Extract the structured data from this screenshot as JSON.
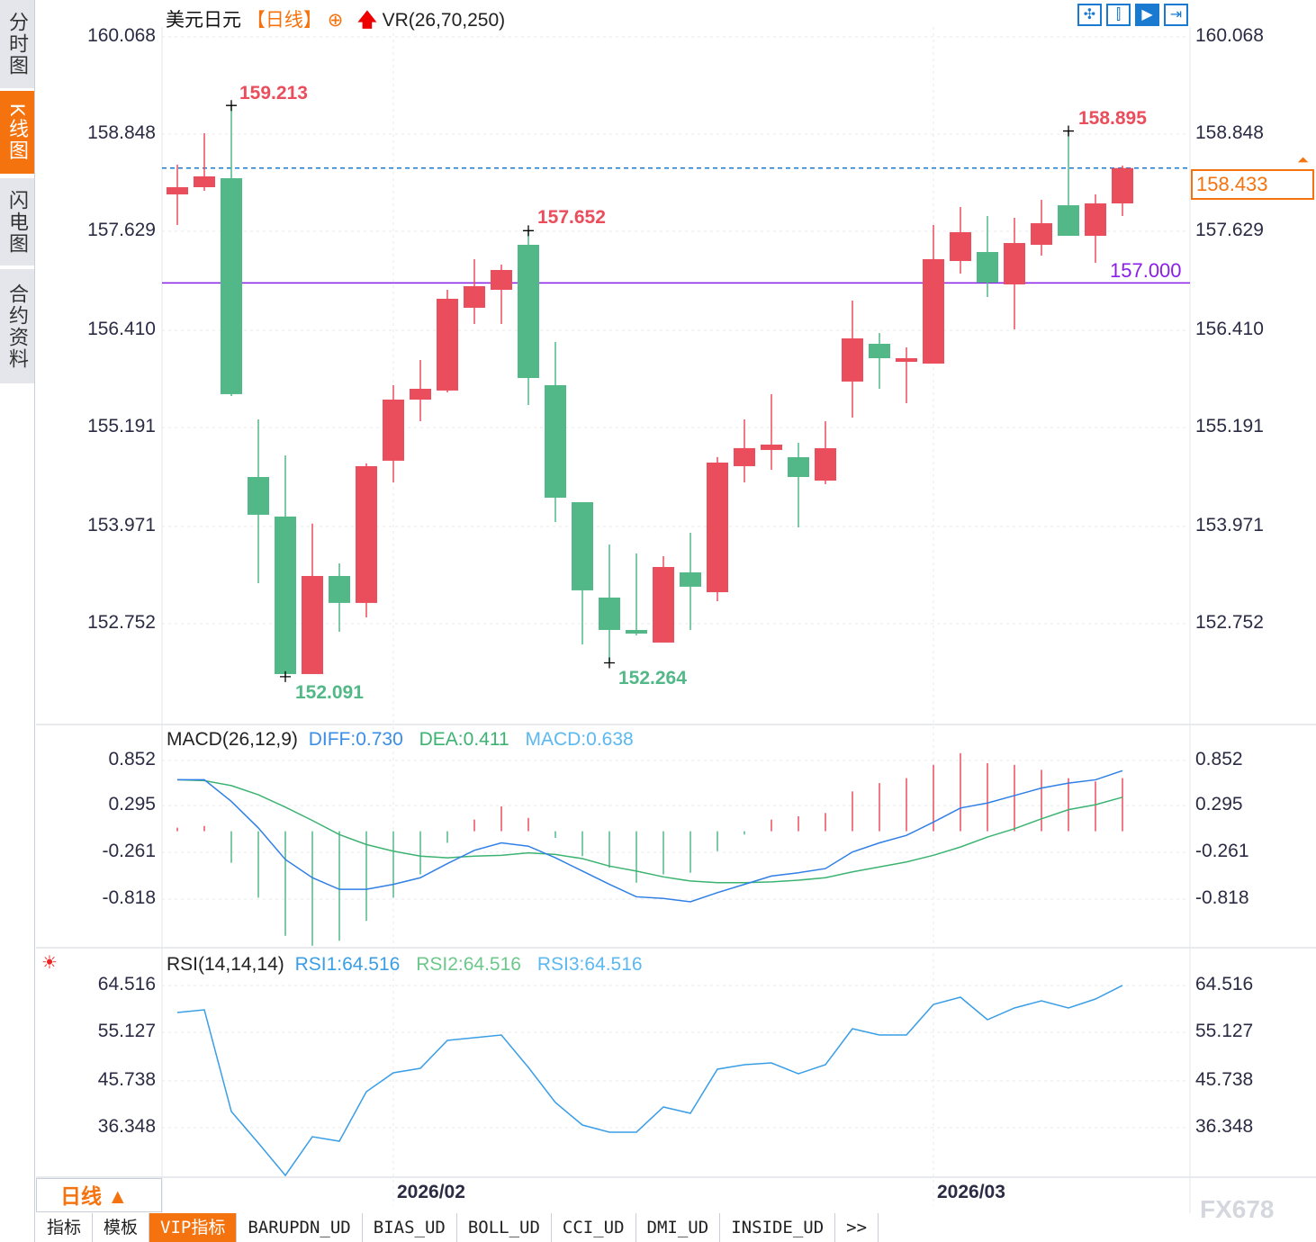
{
  "sidebar": {
    "items": [
      {
        "label": "分时图"
      },
      {
        "label": "K线图",
        "active": true
      },
      {
        "label": "闪电图"
      },
      {
        "label": "合约资料"
      }
    ]
  },
  "header": {
    "symbol": "美元日元",
    "period": "【日线】",
    "add_icon": "⊕",
    "indicator": "VR(26,70,250)"
  },
  "toolbar": {
    "icons": [
      "crosshair-icon",
      "zoom-range-icon",
      "play-range-icon",
      "scroll-right-icon"
    ]
  },
  "price_axis": {
    "labels": [
      "160.068",
      "158.848",
      "157.629",
      "156.410",
      "155.191",
      "153.971",
      "152.752"
    ]
  },
  "current_price": "158.433",
  "level_line": "157.000",
  "annotations": {
    "high1": "159.213",
    "high2": "157.652",
    "high3": "158.895",
    "low1": "152.091",
    "low2": "152.264"
  },
  "macd": {
    "title": "MACD(26,12,9)",
    "diff": "DIFF:0.730",
    "dea": "DEA:0.411",
    "macd": "MACD:0.638",
    "axis": [
      "0.852",
      "0.295",
      "-0.261",
      "-0.818"
    ]
  },
  "rsi": {
    "title": "RSI(14,14,14)",
    "rsi1": "RSI1:64.516",
    "rsi2": "RSI2:64.516",
    "rsi3": "RSI3:64.516",
    "axis": [
      "64.516",
      "55.127",
      "45.738",
      "36.348"
    ]
  },
  "period_selector": "日线 ▲",
  "dates": [
    "2026/02",
    "2026/03"
  ],
  "bottom_tabs": [
    "指标",
    "模板",
    "VIP指标",
    "BARUPDN_UD",
    "BIAS_UD",
    "BOLL_UD",
    "CCI_UD",
    "DMI_UD",
    "INSIDE_UD",
    ">>"
  ],
  "watermark": "FX678",
  "colors": {
    "up": "#ea4e5c",
    "down": "#52b888",
    "accent": "#f5730f",
    "blue": "#1a7ad0",
    "purple": "#8a1ee8"
  },
  "chart_data": {
    "type": "candlestick",
    "ohlc": [
      [
        158.104,
        158.194,
        158.475,
        157.723
      ],
      [
        158.194,
        158.329,
        158.867,
        158.149
      ],
      [
        158.306,
        155.614,
        159.213,
        155.591
      ],
      [
        154.581,
        154.11,
        155.299,
        153.257
      ],
      [
        154.088,
        152.124,
        154.851,
        152.091
      ],
      [
        152.124,
        153.347,
        154.0,
        152.124
      ],
      [
        153.347,
        153.011,
        153.504,
        152.652
      ],
      [
        153.011,
        154.716,
        154.75,
        152.831
      ],
      [
        154.784,
        155.546,
        155.726,
        154.514
      ],
      [
        155.546,
        155.681,
        156.04,
        155.277
      ],
      [
        155.659,
        156.803,
        156.915,
        155.636
      ],
      [
        156.691,
        156.96,
        157.297,
        156.489
      ],
      [
        156.915,
        157.162,
        157.229,
        156.489
      ],
      [
        157.476,
        155.815,
        157.652,
        155.479
      ],
      [
        155.726,
        154.323,
        156.264,
        154.02
      ],
      [
        154.267,
        153.168,
        154.267,
        152.494
      ],
      [
        153.078,
        152.674,
        153.74,
        152.264
      ],
      [
        152.674,
        152.629,
        153.628,
        152.607
      ],
      [
        152.517,
        153.459,
        153.594,
        152.517
      ],
      [
        153.392,
        153.213,
        153.886,
        152.674
      ],
      [
        153.145,
        154.761,
        154.829,
        153.033
      ],
      [
        154.716,
        154.941,
        155.299,
        154.514
      ],
      [
        154.918,
        154.985,
        155.613,
        154.671
      ],
      [
        154.828,
        154.581,
        155.008,
        153.953
      ],
      [
        154.536,
        154.94,
        155.276,
        154.492
      ],
      [
        155.771,
        156.309,
        156.78,
        155.322
      ],
      [
        156.242,
        156.062,
        156.376,
        155.681
      ],
      [
        156.017,
        156.062,
        156.197,
        155.501
      ],
      [
        155.995,
        157.297,
        157.723,
        155.995
      ],
      [
        157.274,
        157.633,
        157.947,
        157.117
      ],
      [
        157.386,
        157.005,
        157.835,
        156.825
      ],
      [
        156.982,
        157.498,
        157.813,
        156.421
      ],
      [
        157.476,
        157.745,
        158.037,
        157.341
      ],
      [
        157.969,
        157.588,
        158.895,
        157.588
      ],
      [
        157.588,
        157.992,
        158.104,
        157.251
      ],
      [
        157.992,
        158.433,
        158.463,
        157.835
      ]
    ],
    "diff": [
      0.62,
      0.62,
      0.36,
      0.04,
      -0.34,
      -0.56,
      -0.7,
      -0.7,
      -0.64,
      -0.56,
      -0.39,
      -0.23,
      -0.14,
      -0.18,
      -0.32,
      -0.48,
      -0.64,
      -0.79,
      -0.81,
      -0.85,
      -0.74,
      -0.64,
      -0.54,
      -0.5,
      -0.45,
      -0.25,
      -0.14,
      -0.05,
      0.11,
      0.28,
      0.34,
      0.43,
      0.52,
      0.58,
      0.62,
      0.73
    ],
    "dea": [
      0.62,
      0.61,
      0.55,
      0.44,
      0.29,
      0.13,
      -0.04,
      -0.16,
      -0.24,
      -0.3,
      -0.32,
      -0.3,
      -0.29,
      -0.26,
      -0.28,
      -0.33,
      -0.42,
      -0.48,
      -0.55,
      -0.6,
      -0.62,
      -0.62,
      -0.61,
      -0.59,
      -0.56,
      -0.49,
      -0.43,
      -0.37,
      -0.29,
      -0.19,
      -0.07,
      0.03,
      0.15,
      0.26,
      0.32,
      0.41
    ],
    "rsi": [
      59.17,
      59.7,
      39.56,
      33.32,
      26.9,
      34.56,
      33.67,
      43.48,
      47.22,
      48.11,
      53.64,
      54.18,
      54.71,
      48.29,
      41.34,
      36.88,
      35.46,
      35.46,
      40.45,
      39.2,
      47.94,
      48.83,
      49.18,
      47.04,
      48.83,
      55.96,
      54.71,
      54.71,
      60.77,
      62.2,
      57.74,
      60.06,
      61.49,
      60.06,
      61.84,
      64.52
    ],
    "date_ticks": [
      {
        "index": 8,
        "label": "2026/02"
      },
      {
        "index": 28,
        "label": "2026/03"
      }
    ]
  }
}
